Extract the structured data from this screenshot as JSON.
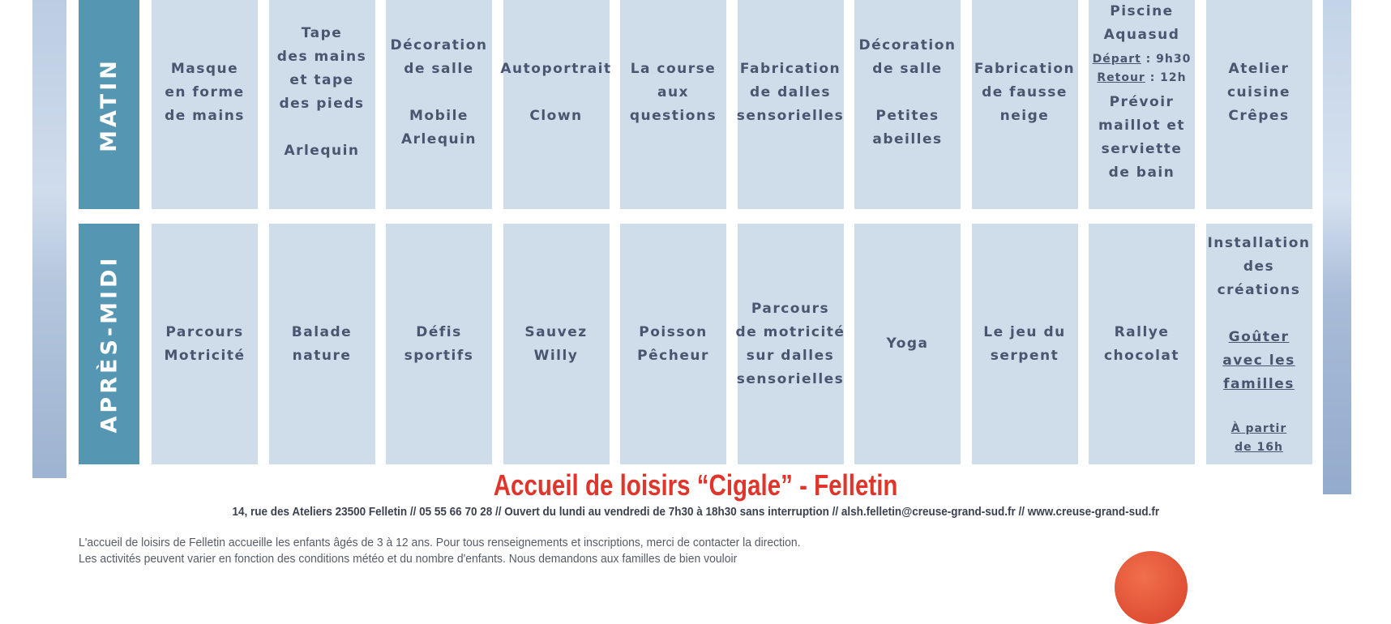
{
  "colors": {
    "label_bg": "#5596b3",
    "cell_bg": "#cfdcea",
    "text": "#4a5670",
    "title": "#e0352b"
  },
  "rows": [
    {
      "label": "MATIN",
      "cells": [
        [
          [
            {
              "t": "Masque"
            }
          ],
          [
            {
              "t": "en forme"
            }
          ],
          [
            {
              "t": "de mains"
            }
          ]
        ],
        [
          [
            {
              "t": "Tape"
            }
          ],
          [
            {
              "t": "des mains"
            }
          ],
          [
            {
              "t": "et tape"
            }
          ],
          [
            {
              "t": "des pieds"
            }
          ],
          "gap",
          [
            {
              "t": "Arlequin"
            }
          ]
        ],
        [
          [
            {
              "t": "Décoration"
            }
          ],
          [
            {
              "t": "de salle"
            }
          ],
          "gap",
          [
            {
              "t": "Mobile"
            }
          ],
          [
            {
              "t": "Arlequin"
            }
          ]
        ],
        [
          [
            {
              "t": "Autoportrait"
            }
          ],
          "gap",
          [
            {
              "t": "Clown"
            }
          ]
        ],
        [
          [
            {
              "t": "La course"
            }
          ],
          [
            {
              "t": "aux"
            }
          ],
          [
            {
              "t": "questions"
            }
          ]
        ],
        [
          [
            {
              "t": "Fabrication"
            }
          ],
          [
            {
              "t": "de dalles"
            }
          ],
          [
            {
              "t": "sensorielles"
            }
          ]
        ],
        [
          [
            {
              "t": "Décoration"
            }
          ],
          [
            {
              "t": "de salle"
            }
          ],
          "gap",
          [
            {
              "t": "Petites"
            }
          ],
          [
            {
              "t": "abeilles"
            }
          ]
        ],
        [
          [
            {
              "t": "Fabrication"
            }
          ],
          [
            {
              "t": "de fausse"
            }
          ],
          [
            {
              "t": "neige"
            }
          ]
        ],
        [
          [
            {
              "t": "Piscine"
            }
          ],
          [
            {
              "t": "Aquasud"
            }
          ],
          "gap",
          [
            {
              "t": "Départ",
              "u": true,
              "s": true
            },
            {
              "t": " : 9h30",
              "s": true
            }
          ],
          [
            {
              "t": "Retour",
              "u": true,
              "s": true
            },
            {
              "t": " : 12h",
              "s": true
            }
          ],
          "gap",
          [
            {
              "t": "Prévoir"
            }
          ],
          [
            {
              "t": "maillot et"
            }
          ],
          [
            {
              "t": "serviette"
            }
          ],
          [
            {
              "t": "de bain"
            }
          ]
        ],
        [
          [
            {
              "t": "Atelier"
            }
          ],
          [
            {
              "t": "cuisine"
            }
          ],
          [
            {
              "t": "Crêpes"
            }
          ]
        ]
      ]
    },
    {
      "label": "APRÈS-MIDI",
      "cells": [
        [
          [
            {
              "t": "Parcours"
            }
          ],
          [
            {
              "t": "Motricité"
            }
          ]
        ],
        [
          [
            {
              "t": "Balade"
            }
          ],
          [
            {
              "t": "nature"
            }
          ]
        ],
        [
          [
            {
              "t": "Défis"
            }
          ],
          [
            {
              "t": "sportifs"
            }
          ]
        ],
        [
          [
            {
              "t": "Sauvez"
            }
          ],
          [
            {
              "t": "Willy"
            }
          ]
        ],
        [
          [
            {
              "t": "Poisson"
            }
          ],
          [
            {
              "t": "Pêcheur"
            }
          ]
        ],
        [
          [
            {
              "t": "Parcours"
            }
          ],
          [
            {
              "t": "de motricité"
            }
          ],
          [
            {
              "t": "sur dalles"
            }
          ],
          [
            {
              "t": "sensorielles"
            }
          ]
        ],
        [
          [
            {
              "t": "Yoga"
            }
          ]
        ],
        [
          [
            {
              "t": "Le jeu du"
            }
          ],
          [
            {
              "t": "serpent"
            }
          ]
        ],
        [
          [
            {
              "t": "Rallye"
            }
          ],
          [
            {
              "t": "chocolat"
            }
          ]
        ],
        [
          [
            {
              "t": "Installation"
            }
          ],
          [
            {
              "t": "des"
            }
          ],
          [
            {
              "t": "créations"
            }
          ],
          "gap",
          [
            {
              "t": "Goûter",
              "u": true
            }
          ],
          [
            {
              "t": "avec les",
              "u": true
            }
          ],
          [
            {
              "t": "familles",
              "u": true
            }
          ],
          "gap",
          [
            {
              "t": "À partir",
              "u": true,
              "s": true
            }
          ],
          [
            {
              "t": "de 16h",
              "u": true,
              "s": true
            }
          ]
        ]
      ]
    }
  ],
  "footer": {
    "title": "Accueil de loisirs “Cigale” - Felletin",
    "address": "14, rue des Ateliers 23500 Felletin // 05 55 66 70 28 // Ouvert du lundi au vendredi de 7h30 à 18h30 sans interruption // alsh.felletin@creuse-grand-sud.fr // www.creuse-grand-sud.fr",
    "paragraph": [
      "L'accueil de loisirs de Felletin accueille les enfants âgés de 3 à 12 ans. Pour tous renseignements et inscriptions, merci de contacter la direction.",
      "Les activités peuvent varier en fonction des conditions météo et du nombre d'enfants. Nous demandons aux familles de bien vouloir"
    ]
  }
}
